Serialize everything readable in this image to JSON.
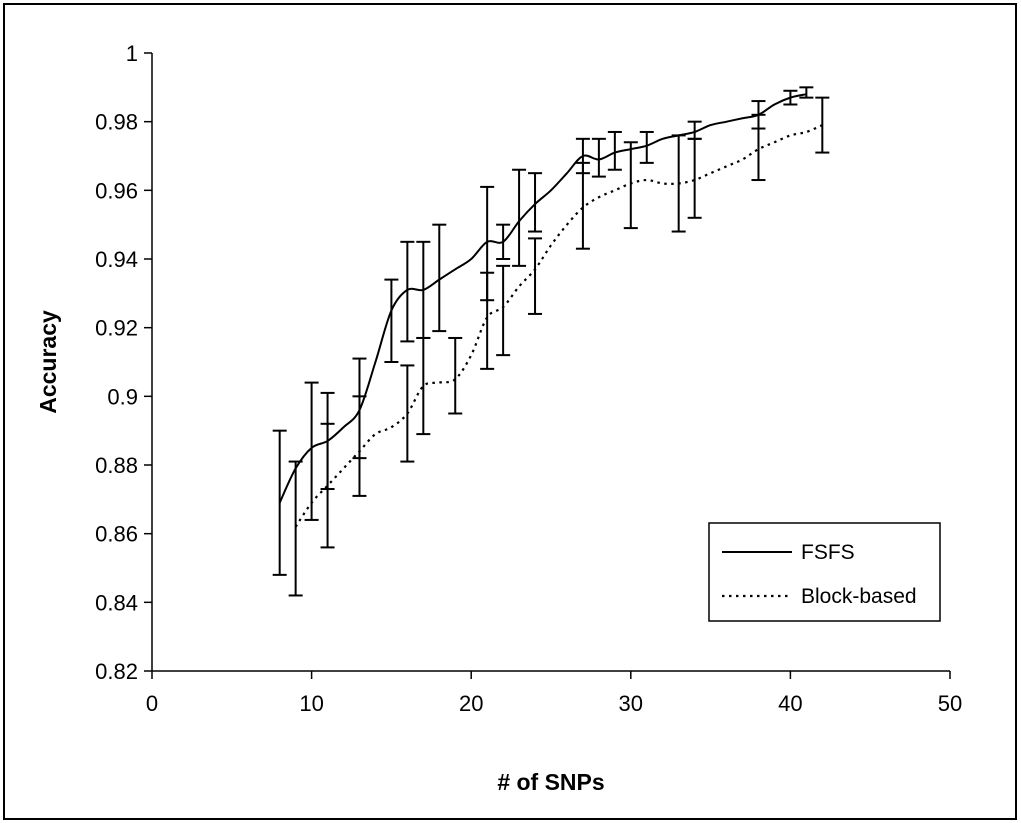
{
  "chart_data": {
    "type": "line",
    "title": "",
    "xlabel": "# of SNPs",
    "ylabel": "Accuracy",
    "xlim": [
      0,
      50
    ],
    "ylim": [
      0.82,
      1.0
    ],
    "x_ticks": [
      0,
      10,
      20,
      30,
      40,
      50
    ],
    "y_ticks": [
      0.82,
      0.84,
      0.86,
      0.88,
      0.9,
      0.92,
      0.94,
      0.96,
      0.98,
      1
    ],
    "x_tick_labels": [
      "0",
      "10",
      "20",
      "30",
      "40",
      "50"
    ],
    "y_tick_labels": [
      "0.82",
      "0.84",
      "0.86",
      "0.88",
      "0.9",
      "0.92",
      "0.94",
      "0.96",
      "0.98",
      "1"
    ],
    "grid": false,
    "legend_position": "bottom-right",
    "series": [
      {
        "name": "FSFS",
        "line_style": "solid",
        "color": "#000000",
        "x": [
          8,
          9,
          10,
          11,
          12,
          13,
          14,
          15,
          16,
          17,
          18,
          19,
          20,
          21,
          22,
          23,
          24,
          25,
          26,
          27,
          28,
          29,
          30,
          31,
          32,
          33,
          34,
          35,
          36,
          37,
          38,
          39,
          40,
          41
        ],
        "y": [
          0.869,
          0.879,
          0.885,
          0.887,
          0.891,
          0.896,
          0.91,
          0.925,
          0.931,
          0.931,
          0.934,
          0.937,
          0.94,
          0.945,
          0.945,
          0.951,
          0.956,
          0.96,
          0.965,
          0.97,
          0.969,
          0.971,
          0.972,
          0.973,
          0.975,
          0.976,
          0.977,
          0.979,
          0.98,
          0.981,
          0.982,
          0.985,
          0.987,
          0.988
        ],
        "error_bars": [
          {
            "x": 8,
            "low": 0.848,
            "high": 0.89
          },
          {
            "x": 10,
            "low": 0.864,
            "high": 0.904
          },
          {
            "x": 11,
            "low": 0.873,
            "high": 0.901
          },
          {
            "x": 13,
            "low": 0.882,
            "high": 0.911
          },
          {
            "x": 15,
            "low": 0.91,
            "high": 0.934
          },
          {
            "x": 16,
            "low": 0.916,
            "high": 0.945
          },
          {
            "x": 17,
            "low": 0.917,
            "high": 0.945
          },
          {
            "x": 18,
            "low": 0.919,
            "high": 0.95
          },
          {
            "x": 21,
            "low": 0.928,
            "high": 0.961
          },
          {
            "x": 22,
            "low": 0.94,
            "high": 0.95
          },
          {
            "x": 23,
            "low": 0.938,
            "high": 0.966
          },
          {
            "x": 24,
            "low": 0.948,
            "high": 0.965
          },
          {
            "x": 27,
            "low": 0.965,
            "high": 0.975
          },
          {
            "x": 28,
            "low": 0.964,
            "high": 0.975
          },
          {
            "x": 29,
            "low": 0.966,
            "high": 0.977
          },
          {
            "x": 31,
            "low": 0.968,
            "high": 0.977
          },
          {
            "x": 34,
            "low": 0.975,
            "high": 0.98
          },
          {
            "x": 38,
            "low": 0.978,
            "high": 0.986
          },
          {
            "x": 40,
            "low": 0.985,
            "high": 0.989
          },
          {
            "x": 41,
            "low": 0.987,
            "high": 0.99
          }
        ]
      },
      {
        "name": "Block-based",
        "line_style": "dotted",
        "color": "#000000",
        "x": [
          9,
          10,
          11,
          12,
          13,
          14,
          15,
          16,
          17,
          18,
          19,
          20,
          21,
          22,
          23,
          24,
          25,
          26,
          27,
          28,
          29,
          30,
          31,
          32,
          33,
          34,
          35,
          36,
          37,
          38,
          39,
          40,
          41,
          42
        ],
        "y": [
          0.862,
          0.869,
          0.874,
          0.879,
          0.884,
          0.889,
          0.891,
          0.895,
          0.903,
          0.904,
          0.905,
          0.912,
          0.923,
          0.926,
          0.932,
          0.937,
          0.944,
          0.95,
          0.955,
          0.958,
          0.96,
          0.962,
          0.963,
          0.962,
          0.962,
          0.963,
          0.965,
          0.967,
          0.969,
          0.972,
          0.974,
          0.976,
          0.977,
          0.979
        ],
        "error_bars": [
          {
            "x": 9,
            "low": 0.842,
            "high": 0.881
          },
          {
            "x": 11,
            "low": 0.856,
            "high": 0.892
          },
          {
            "x": 13,
            "low": 0.871,
            "high": 0.9
          },
          {
            "x": 16,
            "low": 0.881,
            "high": 0.909
          },
          {
            "x": 17,
            "low": 0.889,
            "high": 0.917
          },
          {
            "x": 19,
            "low": 0.895,
            "high": 0.917
          },
          {
            "x": 21,
            "low": 0.908,
            "high": 0.936
          },
          {
            "x": 22,
            "low": 0.912,
            "high": 0.938
          },
          {
            "x": 24,
            "low": 0.924,
            "high": 0.946
          },
          {
            "x": 27,
            "low": 0.943,
            "high": 0.968
          },
          {
            "x": 30,
            "low": 0.949,
            "high": 0.974
          },
          {
            "x": 33,
            "low": 0.948,
            "high": 0.976
          },
          {
            "x": 34,
            "low": 0.952,
            "high": 0.975
          },
          {
            "x": 38,
            "low": 0.963,
            "high": 0.982
          },
          {
            "x": 42,
            "low": 0.971,
            "high": 0.987
          }
        ]
      }
    ]
  }
}
